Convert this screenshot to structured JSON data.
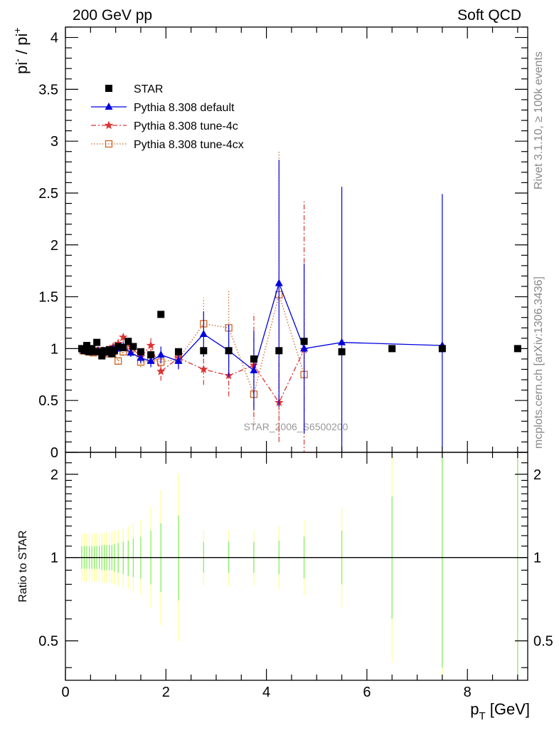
{
  "header": {
    "left": "200 GeV pp",
    "right": "Soft QCD"
  },
  "side_labels": {
    "rivet": "Rivet 3.1.10, ≥ 100k events",
    "mcplots": "mcplots.cern.ch [arXiv:1306.3436]"
  },
  "watermark": "STAR_2006_S6500200",
  "chart_data": {
    "type": "scatter",
    "ylabel_main": "pi⁻ / pi⁺",
    "ylabel_ratio": "Ratio to STAR",
    "xlabel": "p_T [GeV]",
    "xlim": [
      0,
      9.2
    ],
    "ylim_main": [
      0,
      4.1
    ],
    "ylim_ratio": [
      0.36,
      2.4
    ],
    "ratio_log_scale": true,
    "x_ticks": [
      0,
      2,
      4,
      6,
      8
    ],
    "y_ticks_main": [
      0,
      0.5,
      1,
      1.5,
      2,
      2.5,
      3,
      3.5,
      4
    ],
    "y_ticks_ratio": [
      0.5,
      1,
      2
    ],
    "legend_position": "top-left",
    "colors": {
      "star": "#000000",
      "default": "#0000dd",
      "tune4c": "#dd3333",
      "tune4cx": "#cc6622",
      "band_yellow": "#ffff99",
      "band_green": "#88ee66"
    },
    "series": [
      {
        "name": "STAR",
        "style": "data",
        "x": [
          0.325,
          0.375,
          0.425,
          0.475,
          0.525,
          0.575,
          0.625,
          0.675,
          0.725,
          0.775,
          0.825,
          0.875,
          0.925,
          0.975,
          1.05,
          1.15,
          1.25,
          1.35,
          1.5,
          1.7,
          1.9,
          2.25,
          2.75,
          3.25,
          3.75,
          4.25,
          4.75,
          5.5,
          6.5,
          7.5,
          9.0
        ],
        "y": [
          1.0,
          0.98,
          1.03,
          0.97,
          1.0,
          0.97,
          1.06,
          0.97,
          0.93,
          0.98,
          0.97,
          0.99,
          0.95,
          0.98,
          1.02,
          1.01,
          1.07,
          1.02,
          0.97,
          0.94,
          1.33,
          0.97,
          0.98,
          0.98,
          0.9,
          0.98,
          1.07,
          0.97,
          1.0,
          1.0,
          1.0
        ]
      },
      {
        "name": "Pythia 8.308 default",
        "style": "line-triangle",
        "x": [
          0.35,
          0.45,
          0.55,
          0.65,
          0.75,
          0.85,
          0.95,
          1.05,
          1.15,
          1.3,
          1.5,
          1.7,
          1.9,
          2.25,
          2.75,
          3.25,
          3.75,
          4.25,
          4.75,
          5.5,
          7.5
        ],
        "y": [
          0.99,
          0.98,
          0.97,
          0.98,
          0.97,
          0.96,
          1.0,
          1.0,
          1.02,
          0.96,
          0.91,
          0.88,
          0.94,
          0.88,
          1.14,
          0.98,
          0.79,
          1.63,
          1.0,
          1.06,
          1.03
        ],
        "err": [
          0.02,
          0.02,
          0.02,
          0.02,
          0.03,
          0.03,
          0.03,
          0.03,
          0.04,
          0.04,
          0.05,
          0.06,
          0.08,
          0.08,
          0.22,
          0.25,
          0.38,
          1.19,
          0.82,
          1.5,
          1.46
        ]
      },
      {
        "name": "Pythia 8.308 tune-4c",
        "style": "dashdot-star",
        "x": [
          0.35,
          0.45,
          0.55,
          0.65,
          0.75,
          0.85,
          0.95,
          1.05,
          1.15,
          1.3,
          1.5,
          1.7,
          1.9,
          2.25,
          2.75,
          3.25,
          3.75,
          4.25,
          4.75
        ],
        "y": [
          0.99,
          0.98,
          0.99,
          0.97,
          0.98,
          0.97,
          1.02,
          1.05,
          1.11,
          1.02,
          0.92,
          1.03,
          0.78,
          0.91,
          0.8,
          0.74,
          0.84,
          0.48,
          0.99
        ],
        "err": [
          0.02,
          0.02,
          0.02,
          0.02,
          0.03,
          0.03,
          0.03,
          0.04,
          0.05,
          0.05,
          0.06,
          0.08,
          0.09,
          0.09,
          0.15,
          0.2,
          0.5,
          0.38,
          1.43
        ]
      },
      {
        "name": "Pythia 8.308 tune-4cx",
        "style": "dotted-square",
        "x": [
          0.35,
          0.45,
          0.55,
          0.65,
          0.75,
          0.85,
          0.95,
          1.05,
          1.15,
          1.3,
          1.5,
          1.7,
          1.9,
          2.25,
          2.75,
          3.25,
          3.75,
          4.25,
          4.75
        ],
        "y": [
          0.98,
          0.97,
          0.96,
          0.98,
          0.96,
          0.95,
          0.97,
          0.88,
          0.97,
          1.0,
          0.87,
          0.89,
          0.87,
          0.9,
          1.24,
          1.2,
          0.56,
          1.52,
          0.75
        ],
        "err": [
          0.02,
          0.02,
          0.02,
          0.02,
          0.03,
          0.03,
          0.03,
          0.03,
          0.04,
          0.04,
          0.05,
          0.06,
          0.07,
          0.08,
          0.25,
          0.37,
          0.3,
          1.38,
          0.55
        ]
      }
    ],
    "ratio_bands": {
      "x": [
        0.325,
        0.375,
        0.425,
        0.475,
        0.525,
        0.575,
        0.625,
        0.675,
        0.725,
        0.775,
        0.825,
        0.875,
        0.925,
        0.975,
        1.05,
        1.15,
        1.25,
        1.35,
        1.5,
        1.7,
        1.9,
        2.25,
        2.75,
        3.25,
        3.75,
        4.25,
        4.75,
        5.5,
        6.5,
        7.5,
        9.0
      ],
      "green_lo": [
        0.91,
        0.91,
        0.91,
        0.91,
        0.91,
        0.91,
        0.91,
        0.91,
        0.9,
        0.9,
        0.9,
        0.9,
        0.9,
        0.89,
        0.88,
        0.87,
        0.86,
        0.85,
        0.84,
        0.8,
        0.75,
        0.7,
        0.88,
        0.88,
        0.88,
        0.87,
        0.84,
        0.8,
        0.6,
        0.4,
        0.36
      ],
      "green_hi": [
        1.1,
        1.1,
        1.1,
        1.1,
        1.1,
        1.1,
        1.1,
        1.1,
        1.11,
        1.11,
        1.11,
        1.11,
        1.11,
        1.12,
        1.13,
        1.14,
        1.15,
        1.17,
        1.19,
        1.25,
        1.33,
        1.42,
        1.14,
        1.14,
        1.14,
        1.15,
        1.19,
        1.25,
        1.66,
        2.4,
        2.4
      ],
      "yellow_lo": [
        0.82,
        0.82,
        0.82,
        0.82,
        0.82,
        0.82,
        0.82,
        0.82,
        0.81,
        0.81,
        0.81,
        0.81,
        0.8,
        0.8,
        0.79,
        0.78,
        0.77,
        0.75,
        0.73,
        0.66,
        0.57,
        0.5,
        0.79,
        0.79,
        0.79,
        0.77,
        0.73,
        0.66,
        0.42,
        0.36,
        0.36
      ],
      "yellow_hi": [
        1.22,
        1.22,
        1.22,
        1.22,
        1.22,
        1.22,
        1.22,
        1.22,
        1.23,
        1.23,
        1.23,
        1.23,
        1.24,
        1.25,
        1.26,
        1.28,
        1.3,
        1.33,
        1.37,
        1.52,
        1.75,
        2.0,
        1.26,
        1.26,
        1.26,
        1.3,
        1.37,
        1.52,
        2.4,
        2.4,
        2.4
      ]
    }
  }
}
